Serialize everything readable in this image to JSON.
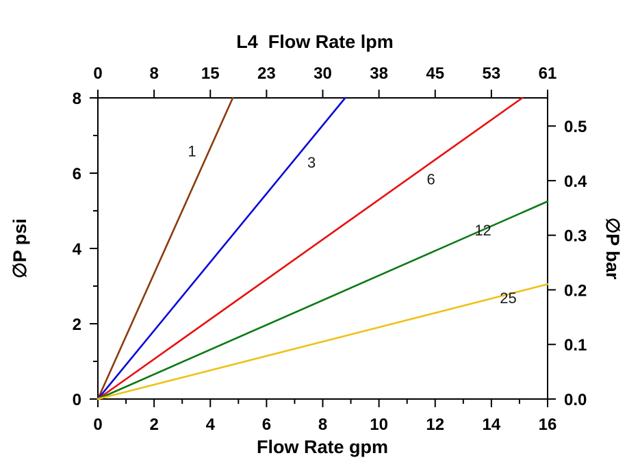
{
  "figure": {
    "background": "#ffffff",
    "axis_color": "#000000"
  },
  "chart_data": {
    "type": "line",
    "x_axis_bottom": {
      "label": "Flow Rate gpm",
      "unit": "gpm",
      "range": [
        0,
        16
      ],
      "major_ticks": [
        0,
        2,
        4,
        6,
        8,
        10,
        12,
        14,
        16
      ],
      "minor_ticks": [
        1,
        3,
        5,
        7,
        9,
        11,
        13,
        15
      ]
    },
    "x_axis_top": {
      "label": "L4  Flow Rate lpm",
      "unit": "lpm",
      "range": [
        0,
        16
      ],
      "tick_positions_gpm": [
        0,
        2,
        4,
        6,
        8,
        10,
        12,
        14,
        16
      ],
      "tick_labels_lpm": [
        "0",
        "8",
        "15",
        "23",
        "30",
        "38",
        "45",
        "53",
        "61"
      ]
    },
    "y_axis_left": {
      "label": "∅P psi",
      "unit": "psi",
      "range": [
        0,
        8
      ],
      "major_ticks": [
        0,
        2,
        4,
        6,
        8
      ],
      "minor_ticks": [
        1,
        3,
        5,
        7
      ]
    },
    "y_axis_right": {
      "label": "∅P bar",
      "unit": "bar",
      "range": [
        0,
        0.5516
      ],
      "major_ticks": [
        0.0,
        0.1,
        0.2,
        0.3,
        0.4,
        0.5
      ]
    },
    "grid": "off",
    "legend": "inline-labels",
    "series": [
      {
        "name": "1",
        "color": "#8b3a0d",
        "points_gpm_psi": [
          [
            0,
            0
          ],
          [
            4.8,
            8
          ]
        ],
        "label_pos_gpm_psi": [
          3.35,
          6.45
        ]
      },
      {
        "name": "3",
        "color": "#0b0bd8",
        "points_gpm_psi": [
          [
            0,
            0
          ],
          [
            8.8,
            8
          ]
        ],
        "label_pos_gpm_psi": [
          7.6,
          6.15
        ]
      },
      {
        "name": "6",
        "color": "#e81010",
        "points_gpm_psi": [
          [
            0,
            0
          ],
          [
            15.1,
            8
          ]
        ],
        "label_pos_gpm_psi": [
          11.85,
          5.7
        ]
      },
      {
        "name": "12",
        "color": "#0c7a14",
        "points_gpm_psi": [
          [
            0,
            0
          ],
          [
            16,
            5.25
          ]
        ],
        "label_pos_gpm_psi": [
          13.7,
          4.35
        ]
      },
      {
        "name": "25",
        "color": "#efc117",
        "points_gpm_psi": [
          [
            0,
            0
          ],
          [
            16,
            3.05
          ]
        ],
        "label_pos_gpm_psi": [
          14.6,
          2.55
        ]
      }
    ]
  }
}
